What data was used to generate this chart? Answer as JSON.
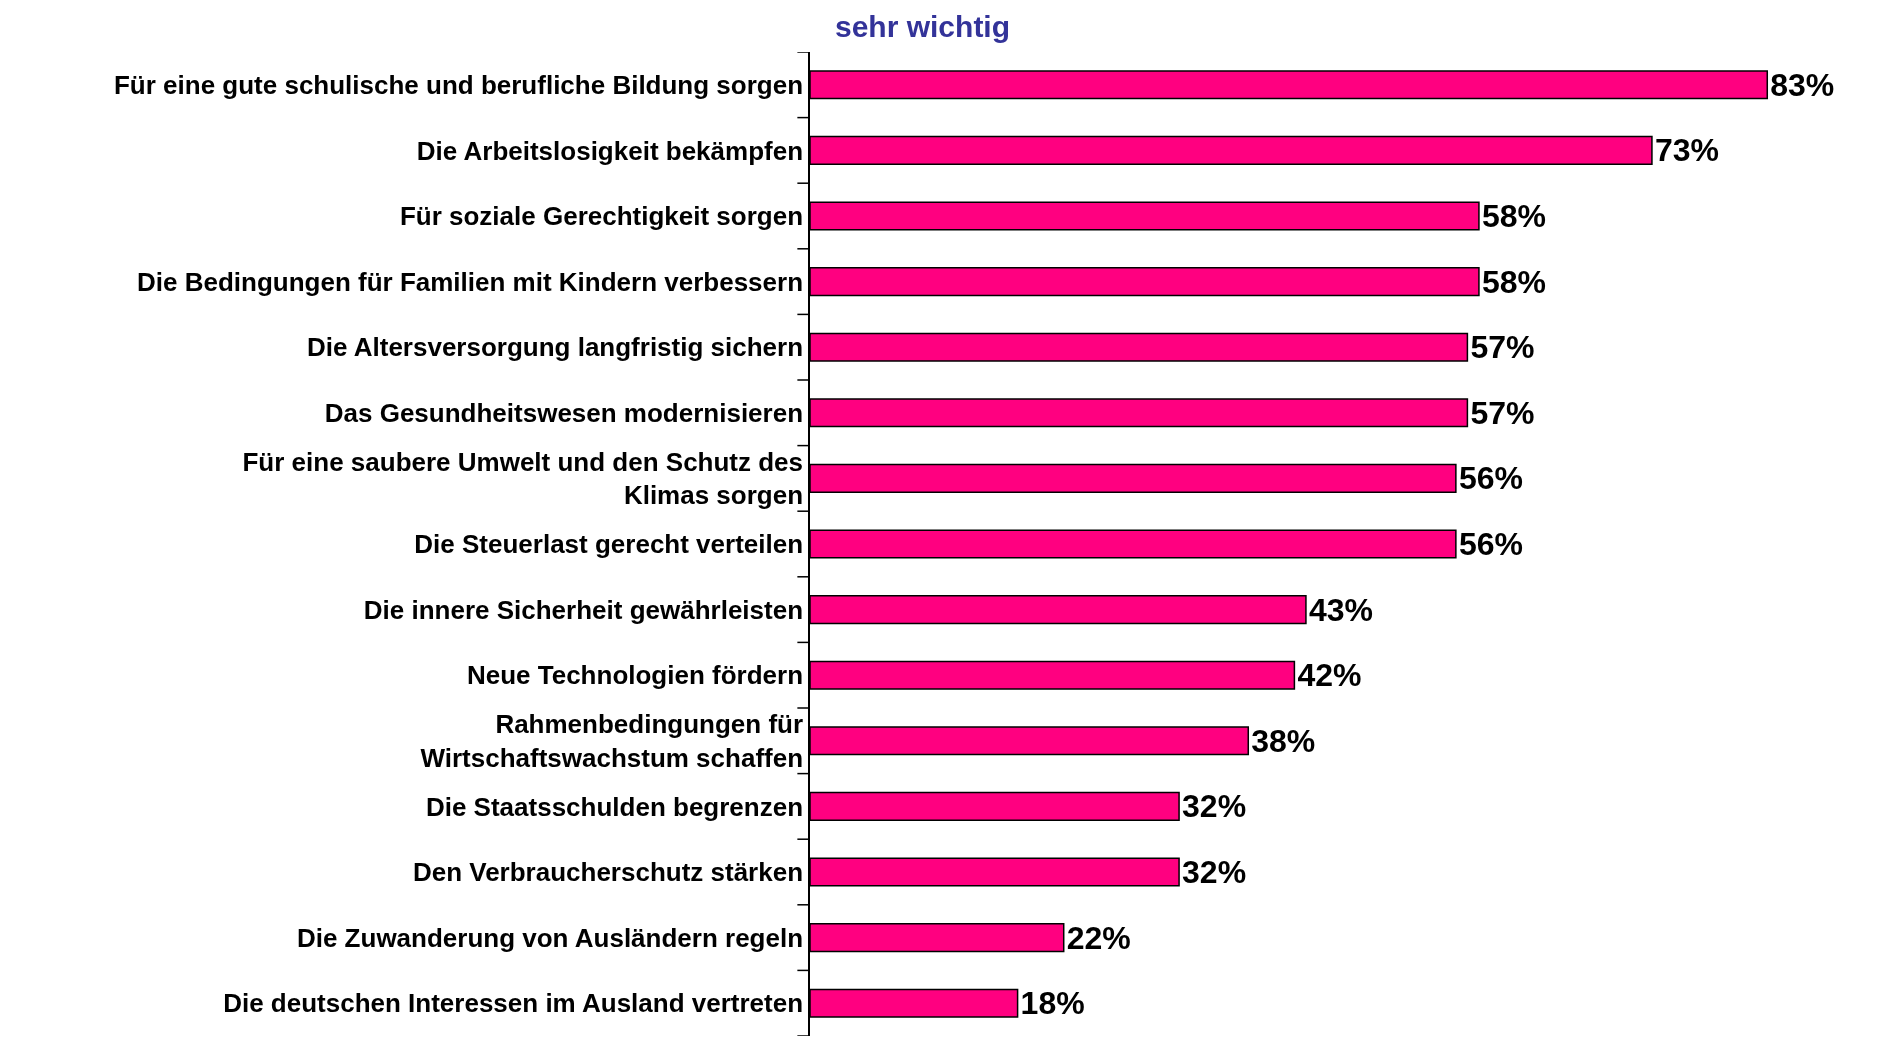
{
  "chart_data": {
    "type": "bar",
    "orientation": "horizontal",
    "title": "sehr wichtig",
    "categories": [
      "Für eine gute schulische und berufliche Bildung sorgen",
      "Die Arbeitslosigkeit bekämpfen",
      "Für soziale Gerechtigkeit sorgen",
      "Die Bedingungen für Familien mit Kindern verbessern",
      "Die Altersversorgung langfristig sichern",
      "Das Gesundheitswesen modernisieren",
      "Für eine saubere Umwelt und den Schutz des\nKlimas sorgen",
      "Die Steuerlast gerecht verteilen",
      "Die innere Sicherheit gewährleisten",
      "Neue Technologien fördern",
      "Rahmenbedingungen für\nWirtschaftswachstum schaffen",
      "Die Staatsschulden begrenzen",
      "Den Verbraucherschutz stärken",
      "Die Zuwanderung von Ausländern regeln",
      "Die deutschen Interessen im Ausland vertreten"
    ],
    "values": [
      83,
      73,
      58,
      58,
      57,
      57,
      56,
      56,
      43,
      42,
      38,
      32,
      32,
      22,
      18
    ],
    "value_labels": [
      "83%",
      "73%",
      "58%",
      "58%",
      "57%",
      "57%",
      "56%",
      "56%",
      "43%",
      "42%",
      "38%",
      "32%",
      "32%",
      "22%",
      "18%"
    ],
    "color": "#ff0080",
    "grid": false,
    "tick_labels": "y"
  }
}
